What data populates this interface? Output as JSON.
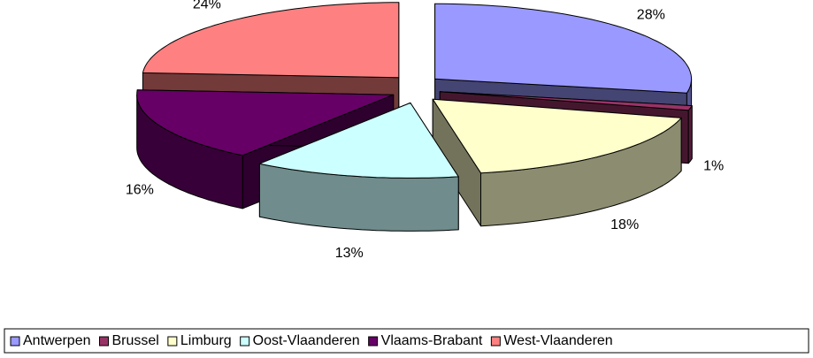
{
  "chart_data": {
    "type": "pie3d",
    "categories": [
      "Antwerpen",
      "Brussel",
      "Limburg",
      "Oost-Vlaanderen",
      "Vlaams-Brabant",
      "West-Vlaanderen"
    ],
    "values": [
      28,
      1,
      18,
      13,
      16,
      24
    ],
    "value_labels": [
      "28%",
      "1%",
      "18%",
      "13%",
      "16%",
      "24%"
    ],
    "colors": [
      "#9999ff",
      "#993366",
      "#ffffcc",
      "#ccffff",
      "#660066",
      "#ff8080"
    ],
    "legend": "bottom"
  }
}
